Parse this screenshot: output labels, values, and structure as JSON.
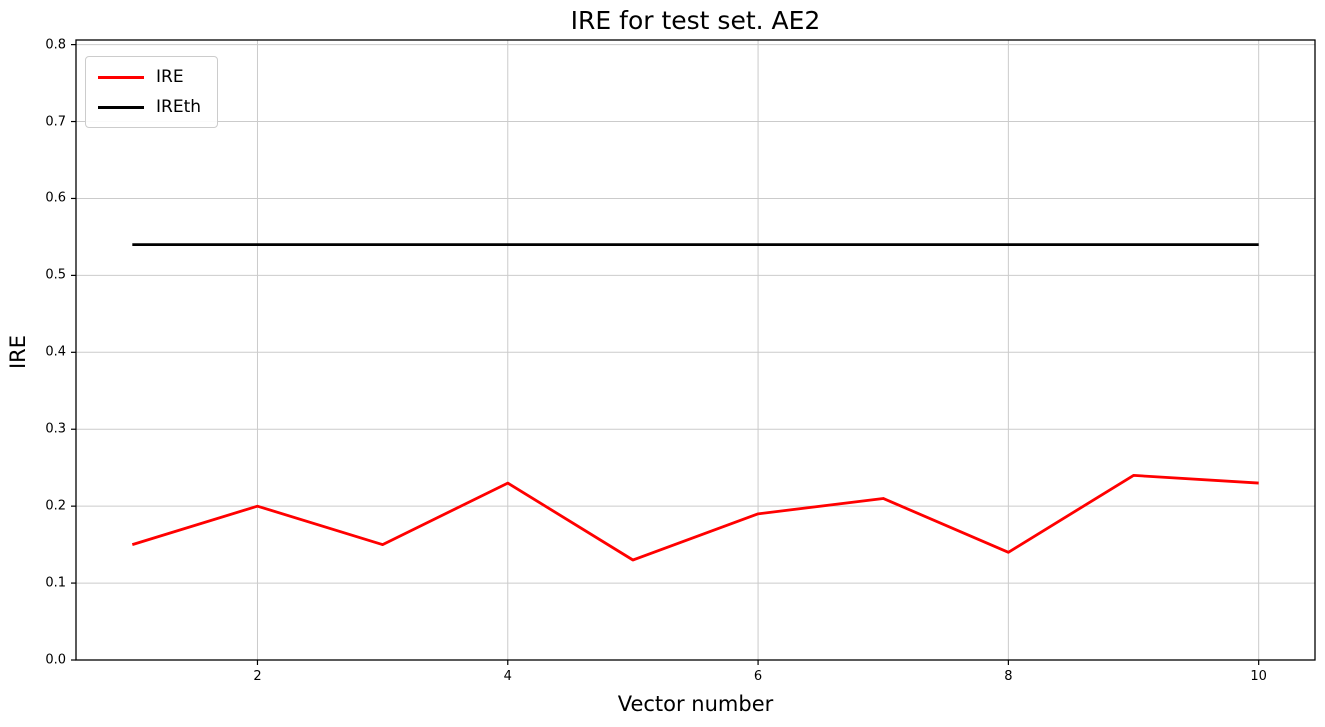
{
  "chart_data": {
    "type": "line",
    "title": "IRE for test set. AE2",
    "xlabel": "Vector number",
    "ylabel": "IRE",
    "x": [
      1,
      2,
      3,
      4,
      5,
      6,
      7,
      8,
      9,
      10
    ],
    "series": [
      {
        "name": "IRE",
        "color": "#ff0000",
        "values": [
          0.15,
          0.2,
          0.15,
          0.23,
          0.13,
          0.19,
          0.21,
          0.14,
          0.24,
          0.23
        ]
      },
      {
        "name": "IREth",
        "color": "#000000",
        "values": [
          0.54,
          0.54,
          0.54,
          0.54,
          0.54,
          0.54,
          0.54,
          0.54,
          0.54,
          0.54
        ]
      }
    ],
    "xlim": [
      0.55,
      10.45
    ],
    "ylim": [
      0.0,
      0.806
    ],
    "xticks": [
      2,
      4,
      6,
      8,
      10
    ],
    "xtick_labels": [
      "2",
      "4",
      "6",
      "8",
      "10"
    ],
    "yticks": [
      0.0,
      0.1,
      0.2,
      0.3,
      0.4,
      0.5,
      0.6,
      0.7,
      0.8
    ],
    "ytick_labels": [
      "0.0",
      "0.1",
      "0.2",
      "0.3",
      "0.4",
      "0.5",
      "0.6",
      "0.7",
      "0.8"
    ],
    "grid": true,
    "grid_color": "#cbcbcb",
    "axes_color": "#000000",
    "background": "#ffffff",
    "legend": {
      "position": "upper-left",
      "entries": [
        "IRE",
        "IREth"
      ]
    }
  }
}
